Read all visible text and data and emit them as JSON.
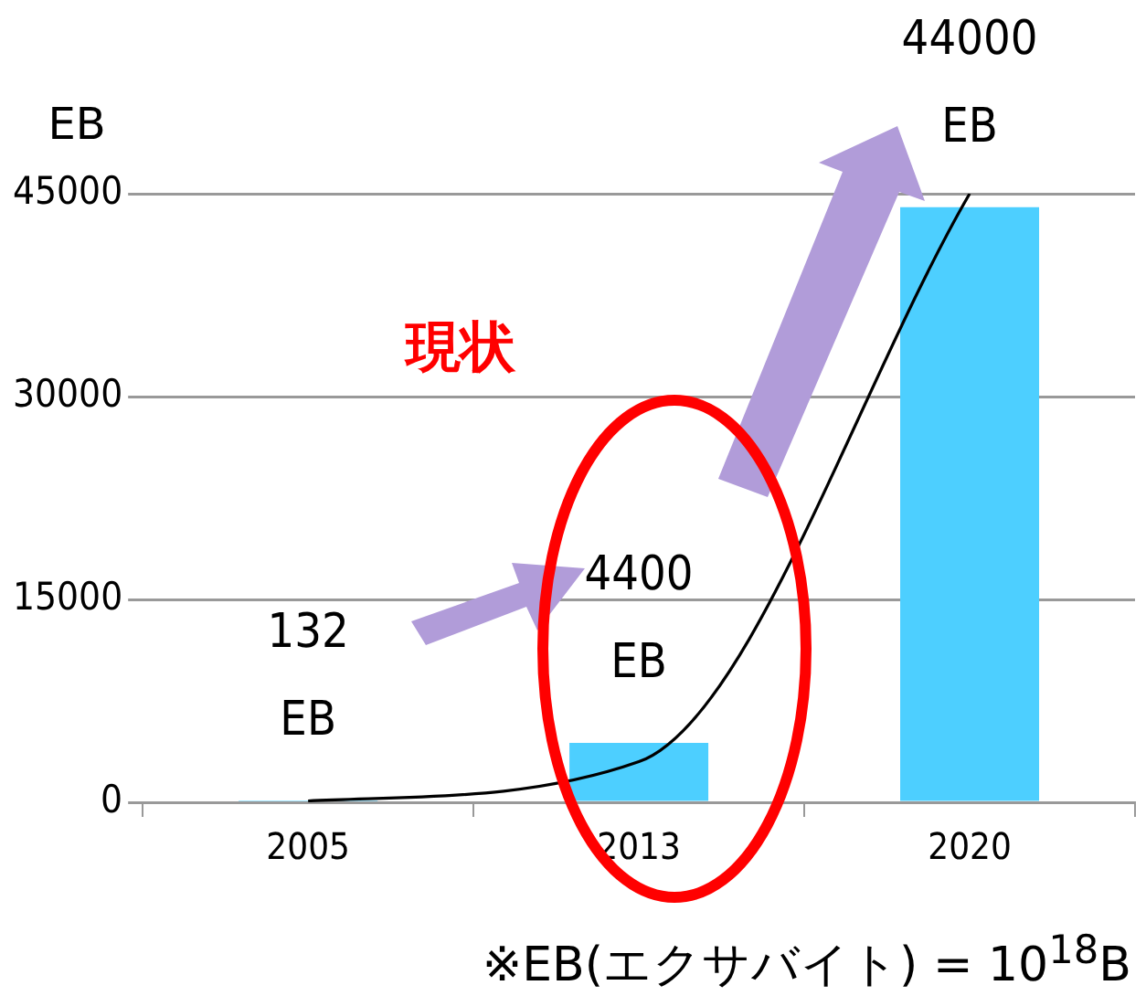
{
  "chart_data": {
    "type": "bar",
    "ylabel": "EB",
    "categories": [
      "2005",
      "2013",
      "2020"
    ],
    "ylim": [
      0,
      45000
    ],
    "yticks": [
      0,
      15000,
      30000,
      45000
    ],
    "grid": "y",
    "legend": false,
    "series": [
      {
        "color": "#4dcfff",
        "values": [
          132,
          4400,
          44000
        ],
        "value_labels": [
          "132\nEB",
          "4400\nEB",
          "44000\nEB"
        ]
      },
      {
        "type": "line",
        "color": "#000000",
        "values": [
          100,
          3000,
          45000
        ],
        "marker": "none"
      }
    ],
    "annotations": [
      "現状",
      "※EB(エクサバイト) = 10$^{18}$B"
    ]
  }
}
